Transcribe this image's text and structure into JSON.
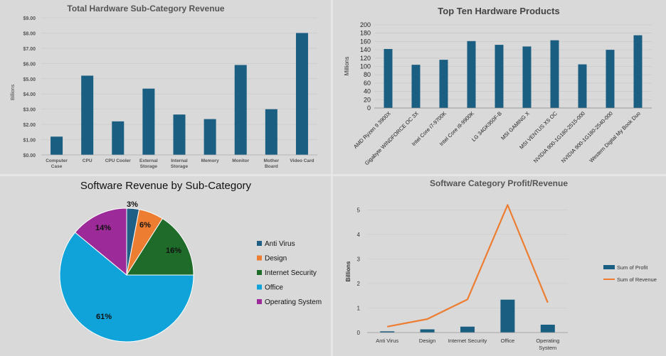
{
  "chart_data": [
    {
      "type": "bar",
      "title": "Total Hardware Sub-Category Revenue",
      "ylabel": "Billions",
      "xlabel": "",
      "categories": [
        "Computer Case",
        "CPU",
        "CPU Cooler",
        "External Storage",
        "Internal Storage",
        "Memory",
        "Monitor",
        "Mother Board",
        "Video Card"
      ],
      "category_lines": [
        [
          "Computer",
          "Case"
        ],
        [
          "CPU"
        ],
        [
          "CPU Cooler"
        ],
        [
          "External",
          "Storage"
        ],
        [
          "Internal",
          "Storage"
        ],
        [
          "Memory"
        ],
        [
          "Monitor"
        ],
        [
          "Mother",
          "Board"
        ],
        [
          "Video Card"
        ]
      ],
      "values": [
        1.2,
        5.2,
        2.2,
        4.35,
        2.65,
        2.35,
        5.9,
        3.0,
        8.0
      ],
      "ylim": [
        0,
        9
      ],
      "yticks": [
        "$0.00",
        "$1.00",
        "$2.00",
        "$3.00",
        "$4.00",
        "$5.00",
        "$6.00",
        "$7.00",
        "$8.00",
        "$9.00"
      ],
      "color": "#1a5e82"
    },
    {
      "type": "bar",
      "title": "Top Ten Hardware Products",
      "ylabel": "Millions",
      "xlabel": "",
      "categories": [
        "AMD Ryzen 9 3900X",
        "Gigabyte WINDFORCE OC 3X",
        "Intel Core i7-9700K",
        "Intel Core i9-9900K",
        "LG 34GK950F-B",
        "MSI GAMING X",
        "MSI VENTUS XS OC",
        "NVIDIA 900-1G180-2515-000",
        "NVIDIA 900-1G180-2540-000",
        "Western Digital My Book Duo"
      ],
      "values": [
        142,
        104,
        116,
        161,
        152,
        148,
        163,
        105,
        140,
        175
      ],
      "ylim": [
        0,
        200
      ],
      "yticks": [
        "0",
        "20",
        "40",
        "60",
        "80",
        "100",
        "120",
        "140",
        "160",
        "180",
        "200"
      ],
      "color": "#1a5e82"
    },
    {
      "type": "pie",
      "title": "Software Revenue by Sub-Category",
      "labels": [
        "Anti Virus",
        "Design",
        "Internet Security",
        "Office",
        "Operating System"
      ],
      "values": [
        3,
        6,
        16,
        61,
        14
      ],
      "value_labels": [
        "3%",
        "6%",
        "16%",
        "61%",
        "14%"
      ],
      "colors": [
        "#1f5f85",
        "#ed7d31",
        "#1e6b2a",
        "#0fa3d9",
        "#9c2a98"
      ],
      "legend_position": "right"
    },
    {
      "type": "bar",
      "title": "Software Category Profit/Revenue",
      "ylabel": "Billions",
      "xlabel": "",
      "categories": [
        "Anti Virus",
        "Design",
        "Internet Security",
        "Office",
        "Operating System"
      ],
      "category_lines": [
        [
          "Anti Virus"
        ],
        [
          "Design"
        ],
        [
          "Internet Security"
        ],
        [
          "Office"
        ],
        [
          "Operating",
          "System"
        ]
      ],
      "ylim": [
        0,
        5.5
      ],
      "yticks": [
        "0",
        "1",
        "2",
        "3",
        "4",
        "5"
      ],
      "series": [
        {
          "name": "Sum of Profit",
          "kind": "bar",
          "color": "#1a5e82",
          "values": [
            0.05,
            0.13,
            0.24,
            1.34,
            0.32
          ]
        },
        {
          "name": "Sum of Revenue",
          "kind": "line",
          "color": "#ed7d31",
          "values": [
            0.24,
            0.55,
            1.35,
            5.2,
            1.22
          ]
        }
      ],
      "legend_position": "right"
    }
  ]
}
